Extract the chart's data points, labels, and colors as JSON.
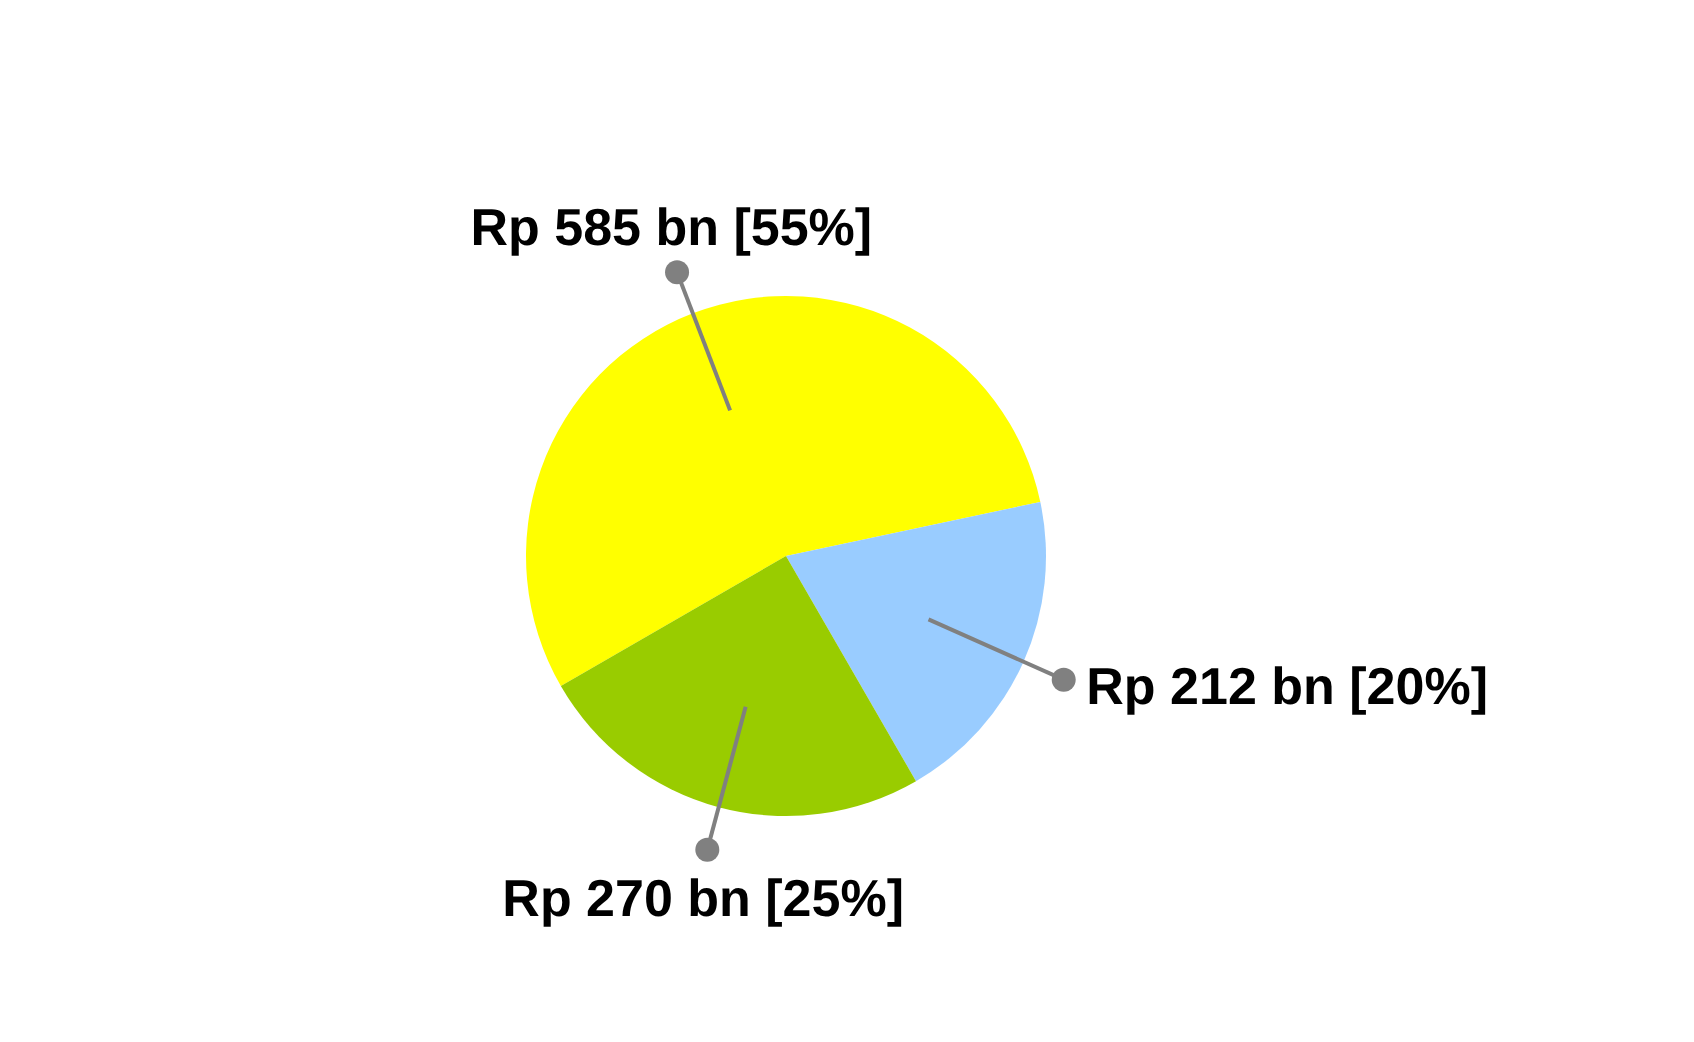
{
  "chart_data": {
    "type": "pie",
    "categories": [
      null,
      null,
      null
    ],
    "values": [
      55,
      20,
      25
    ],
    "colors": [
      "#ffff00",
      "#99ccff",
      "#99cc00"
    ],
    "value_labels": [
      "Rp 585 bn [55%]",
      "Rp 212 bn [20%]",
      "Rp 270 bn [25%]"
    ]
  }
}
